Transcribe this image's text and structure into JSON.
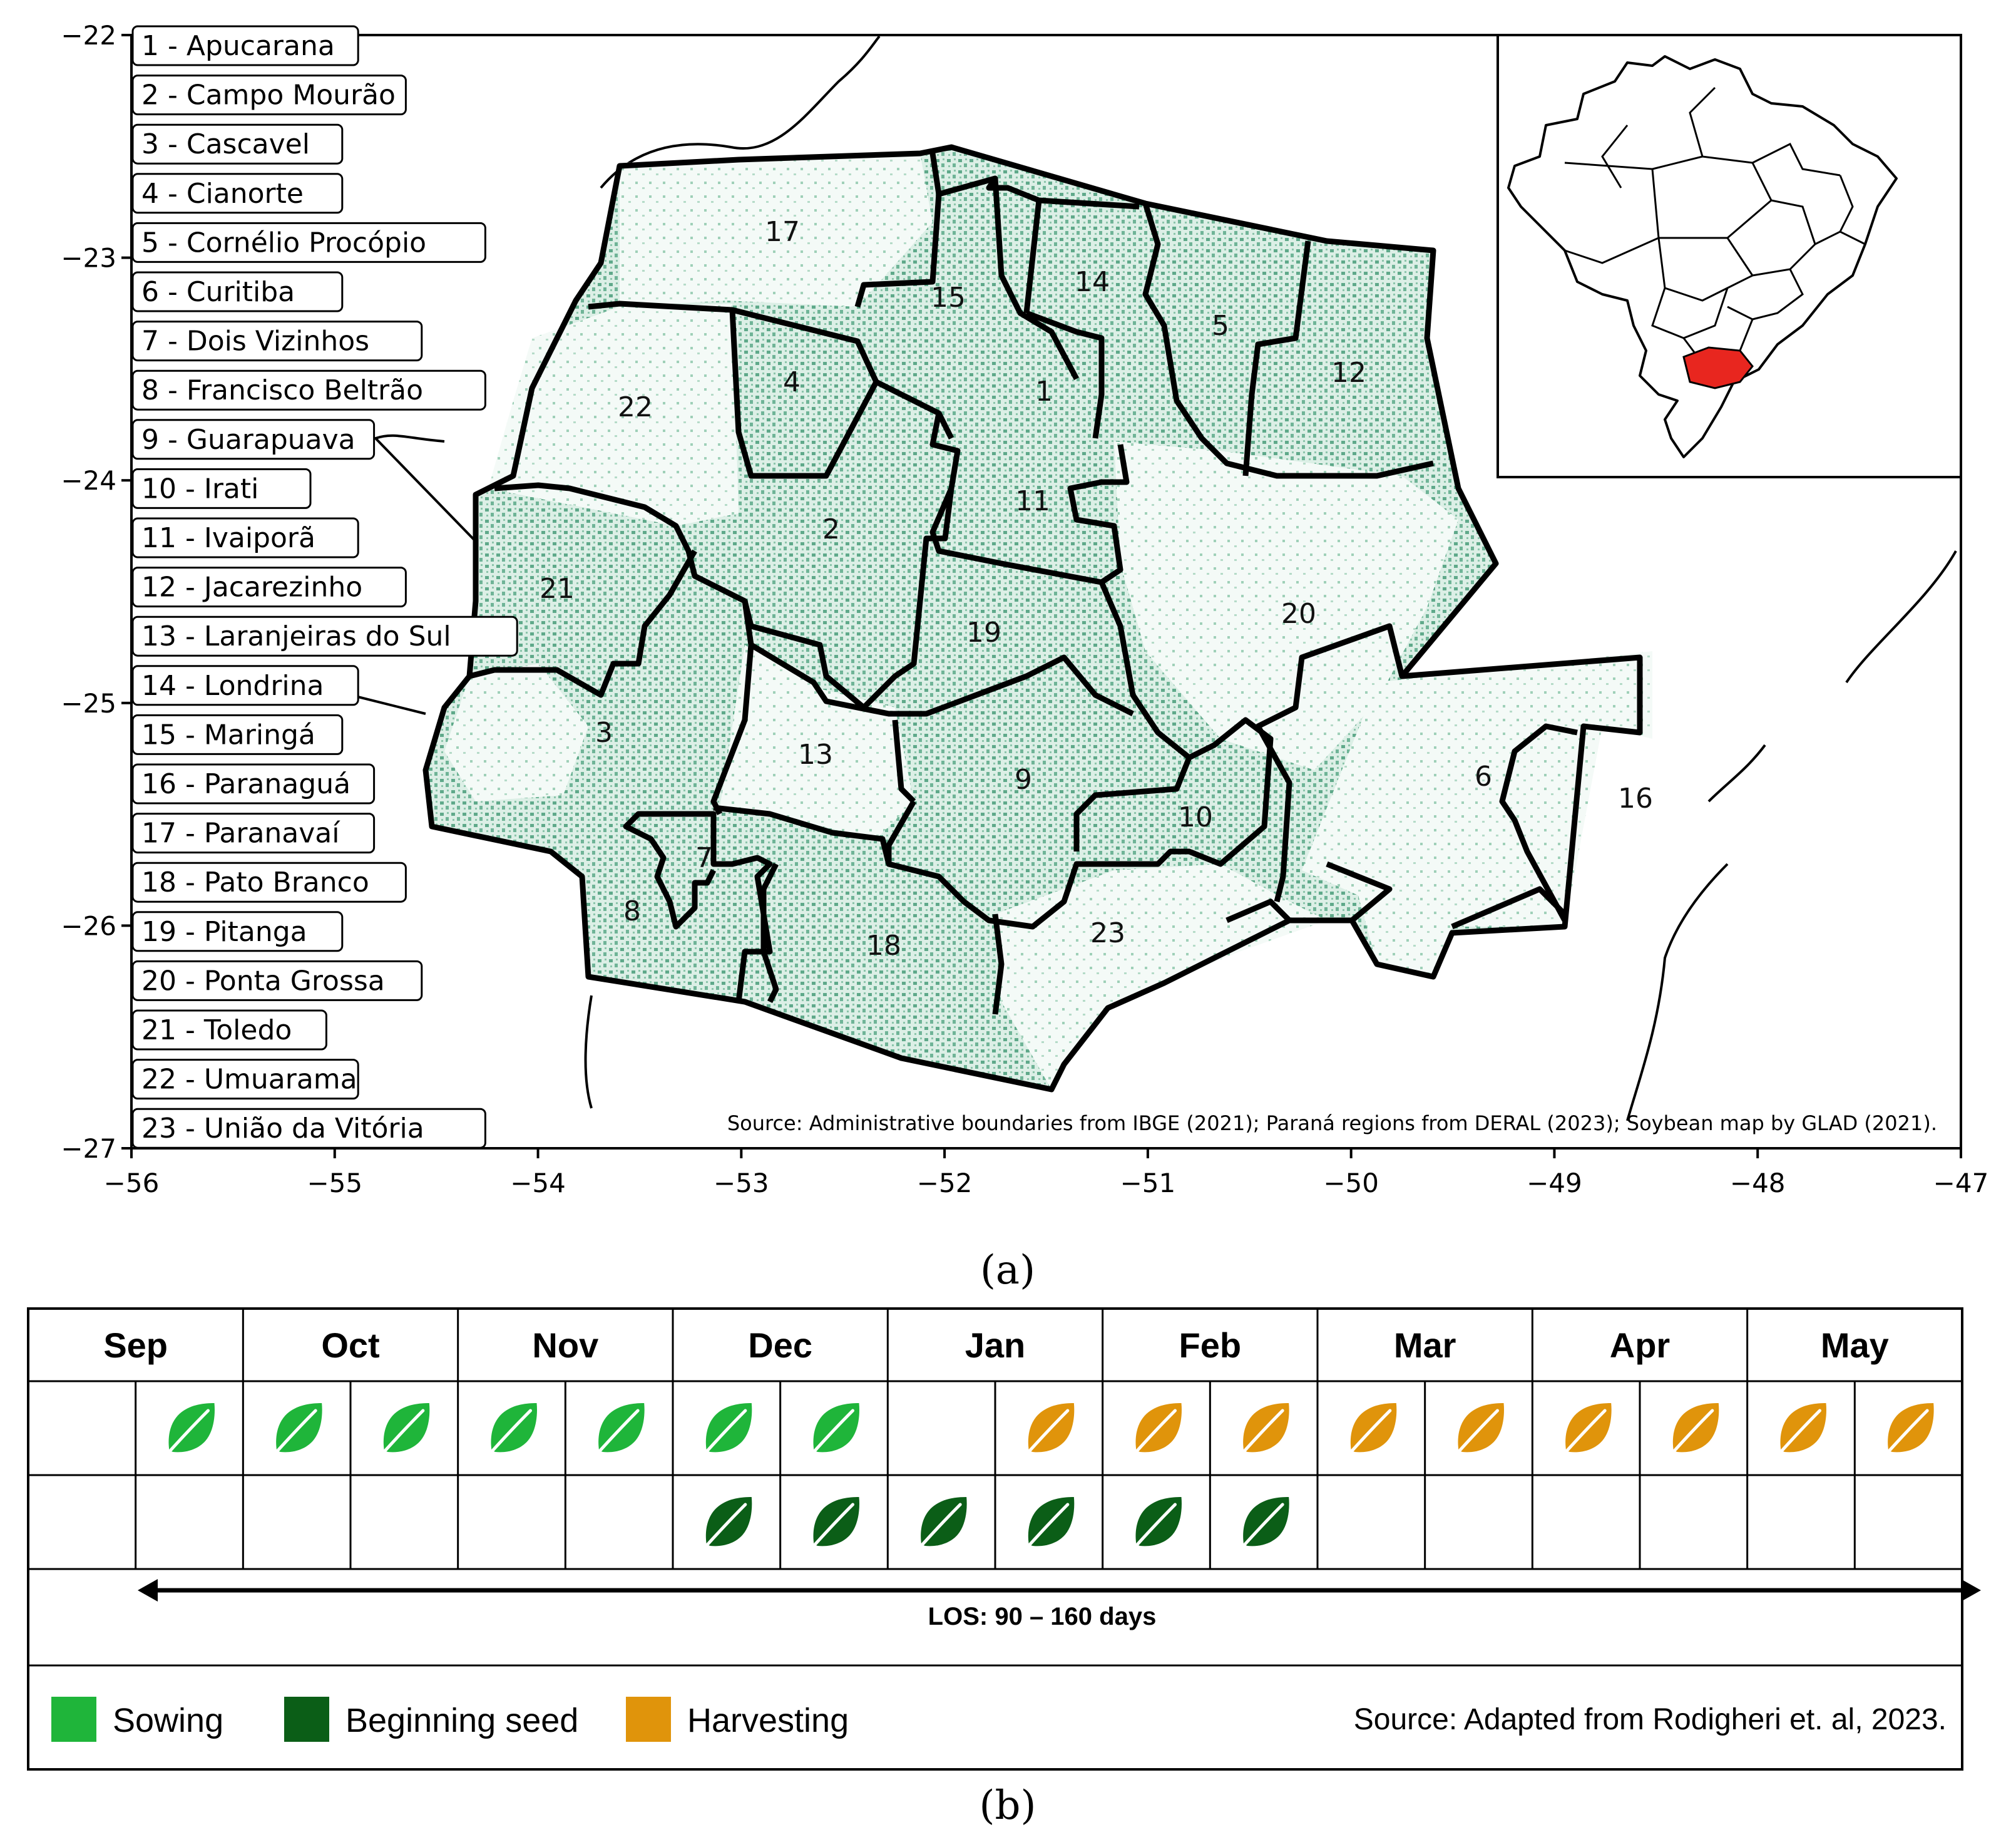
{
  "map": {
    "x_ticks": [
      "−56",
      "−55",
      "−54",
      "−53",
      "−52",
      "−51",
      "−50",
      "−49",
      "−48",
      "−47"
    ],
    "y_ticks": [
      "−22",
      "−23",
      "−24",
      "−25",
      "−26",
      "−27"
    ],
    "regions": [
      {
        "num": "1",
        "label": "1 - Apucarana"
      },
      {
        "num": "2",
        "label": "2 - Campo Mourão"
      },
      {
        "num": "3",
        "label": "3 - Cascavel"
      },
      {
        "num": "4",
        "label": "4 - Cianorte"
      },
      {
        "num": "5",
        "label": "5 - Cornélio Procópio"
      },
      {
        "num": "6",
        "label": "6 - Curitiba"
      },
      {
        "num": "7",
        "label": "7 - Dois Vizinhos"
      },
      {
        "num": "8",
        "label": "8 - Francisco Beltrão"
      },
      {
        "num": "9",
        "label": "9 - Guarapuava"
      },
      {
        "num": "10",
        "label": "10 - Irati"
      },
      {
        "num": "11",
        "label": "11 - Ivaiporã"
      },
      {
        "num": "12",
        "label": "12 - Jacarezinho"
      },
      {
        "num": "13",
        "label": "13 - Laranjeiras do Sul"
      },
      {
        "num": "14",
        "label": "14 - Londrina"
      },
      {
        "num": "15",
        "label": "15 - Maringá"
      },
      {
        "num": "16",
        "label": "16 - Paranaguá"
      },
      {
        "num": "17",
        "label": "17 - Paranavaí"
      },
      {
        "num": "18",
        "label": "18 - Pato Branco"
      },
      {
        "num": "19",
        "label": "19 - Pitanga"
      },
      {
        "num": "20",
        "label": "20 - Ponta Grossa"
      },
      {
        "num": "21",
        "label": "21 - Toledo"
      },
      {
        "num": "22",
        "label": "22 - Umuarama"
      },
      {
        "num": "23",
        "label": "23 - União da Vitória"
      }
    ],
    "source": "Source: Administrative boundaries from IBGE (2021); Paraná regions from DERAL (2023); Soybean map by GLAD (2021).",
    "caption": "(a)",
    "colors": {
      "soybean": "#5fa98a",
      "highlight": "#e8261f"
    }
  },
  "calendar": {
    "months": [
      "Sep",
      "Oct",
      "Nov",
      "Dec",
      "Jan",
      "Feb",
      "Mar",
      "Apr",
      "May"
    ],
    "row1": [
      "",
      "sowing",
      "sowing",
      "sowing",
      "sowing",
      "sowing",
      "sowing",
      "sowing",
      "",
      "harvesting",
      "harvesting",
      "harvesting",
      "harvesting",
      "harvesting",
      "harvesting",
      "harvesting",
      "harvesting",
      "harvesting"
    ],
    "row2": [
      "",
      "",
      "",
      "",
      "",
      "",
      "beginning-seed",
      "beginning-seed",
      "beginning-seed",
      "beginning-seed",
      "beginning-seed",
      "beginning-seed",
      "",
      "",
      "",
      "",
      "",
      ""
    ],
    "los_label": "LOS: 90 – 160 days",
    "legend": [
      {
        "key": "sowing",
        "label": "Sowing",
        "color": "#1fb53a"
      },
      {
        "key": "beginning-seed",
        "label": "Beginning seed",
        "color": "#0b5e17"
      },
      {
        "key": "harvesting",
        "label": "Harvesting",
        "color": "#e0940b"
      }
    ],
    "credit": "Source: Adapted from Rodigheri et. al, 2023.",
    "caption": "(b)"
  }
}
